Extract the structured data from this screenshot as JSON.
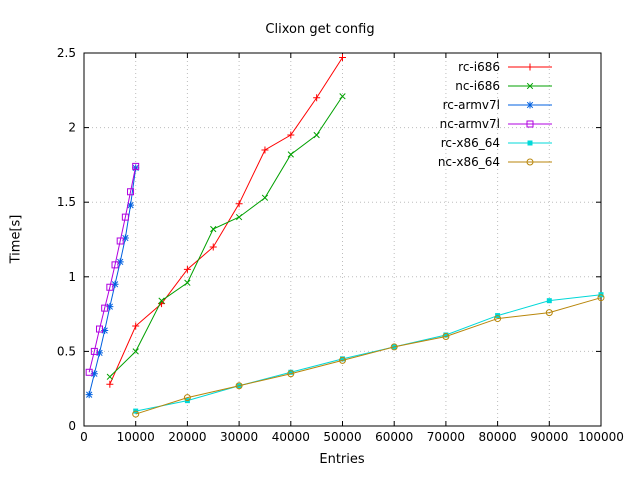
{
  "page": {
    "title": "Clixon get config"
  },
  "chart_data": {
    "type": "line",
    "title": "Clixon get config",
    "xlabel": "Entries",
    "ylabel": "Time[s]",
    "xlim": [
      0,
      100000
    ],
    "ylim": [
      0,
      2.5
    ],
    "xticks": [
      0,
      10000,
      20000,
      30000,
      40000,
      50000,
      60000,
      70000,
      80000,
      90000,
      100000
    ],
    "yticks": [
      0,
      0.5,
      1,
      1.5,
      2,
      2.5
    ],
    "grid": true,
    "grid_color": "#bdbdbd",
    "background": "#ffffff",
    "border_color": "#000000",
    "legend_position": "top-right-inside",
    "series": [
      {
        "name": "rc-i686",
        "color": "#ff0000",
        "marker": "plus",
        "x": [
          5000,
          10000,
          15000,
          20000,
          25000,
          30000,
          35000,
          40000,
          45000,
          50000
        ],
        "y": [
          0.28,
          0.67,
          0.82,
          1.05,
          1.2,
          1.49,
          1.85,
          1.95,
          2.2,
          2.47
        ]
      },
      {
        "name": "nc-i686",
        "color": "#00a000",
        "marker": "cross",
        "x": [
          5000,
          10000,
          15000,
          20000,
          25000,
          30000,
          35000,
          40000,
          45000,
          50000
        ],
        "y": [
          0.33,
          0.5,
          0.84,
          0.96,
          1.32,
          1.4,
          1.53,
          1.82,
          1.95,
          2.21
        ]
      },
      {
        "name": "rc-armv7l",
        "color": "#0060e0",
        "marker": "asterisk",
        "x": [
          1000,
          2000,
          3000,
          4000,
          5000,
          6000,
          7000,
          8000,
          9000,
          10000
        ],
        "y": [
          0.21,
          0.35,
          0.49,
          0.64,
          0.8,
          0.95,
          1.1,
          1.26,
          1.48,
          1.73
        ]
      },
      {
        "name": "nc-armv7l",
        "color": "#b000e0",
        "marker": "square-open",
        "x": [
          1000,
          2000,
          3000,
          4000,
          5000,
          6000,
          7000,
          8000,
          9000,
          10000
        ],
        "y": [
          0.36,
          0.5,
          0.65,
          0.79,
          0.93,
          1.08,
          1.24,
          1.4,
          1.57,
          1.74
        ]
      },
      {
        "name": "rc-x86_64",
        "color": "#00d8d8",
        "marker": "square-filled",
        "x": [
          10000,
          20000,
          30000,
          40000,
          50000,
          60000,
          70000,
          80000,
          90000,
          100000
        ],
        "y": [
          0.1,
          0.17,
          0.27,
          0.36,
          0.45,
          0.53,
          0.61,
          0.74,
          0.84,
          0.88
        ]
      },
      {
        "name": "nc-x86_64",
        "color": "#b8860b",
        "marker": "circle-open",
        "x": [
          10000,
          20000,
          30000,
          40000,
          50000,
          60000,
          70000,
          80000,
          90000,
          100000
        ],
        "y": [
          0.08,
          0.19,
          0.27,
          0.35,
          0.44,
          0.53,
          0.6,
          0.72,
          0.76,
          0.86
        ]
      }
    ]
  }
}
